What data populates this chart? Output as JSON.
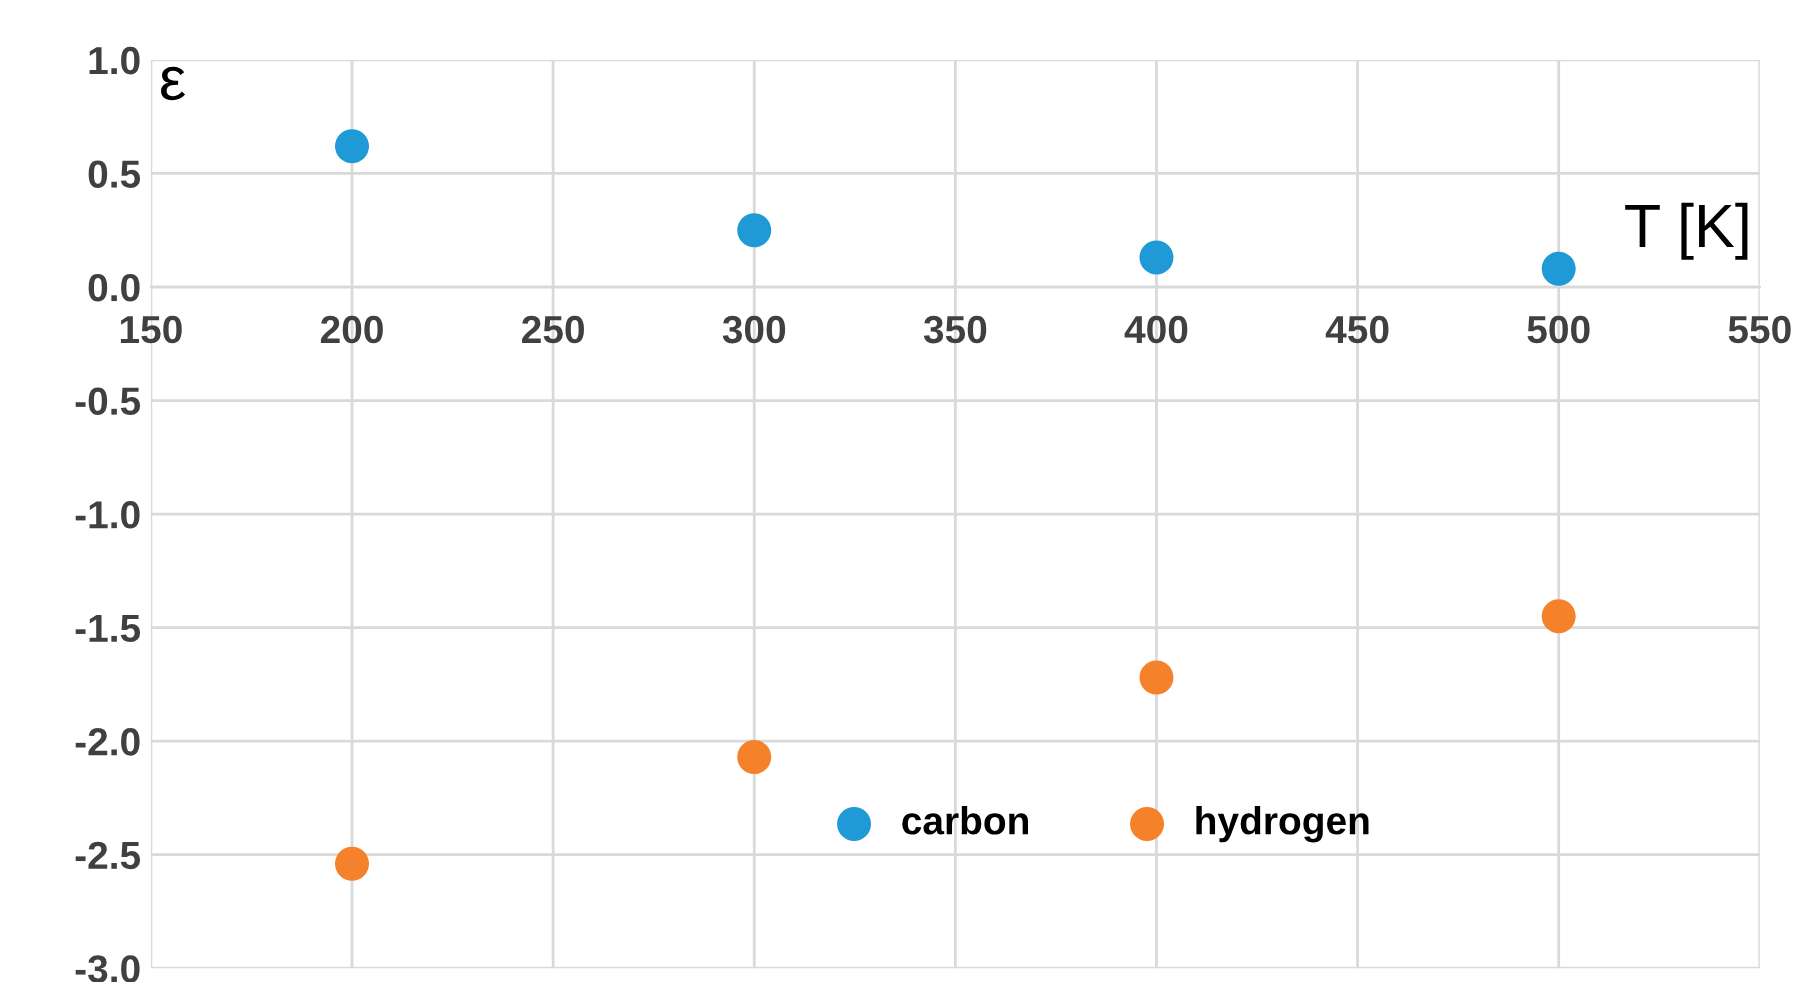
{
  "chart_data": {
    "type": "scatter",
    "xlabel": "T [K]",
    "ylabel": "ε",
    "series": [
      {
        "name": "carbon",
        "color": "#1f9ad6",
        "x": [
          200,
          300,
          400,
          500
        ],
        "values": [
          0.62,
          0.25,
          0.13,
          0.08
        ]
      },
      {
        "name": "hydrogen",
        "color": "#f5822a",
        "x": [
          200,
          300,
          400,
          500
        ],
        "values": [
          -2.54,
          -2.07,
          -1.72,
          -1.45
        ]
      }
    ],
    "xlim": [
      150,
      550
    ],
    "xticks": [
      150,
      200,
      250,
      300,
      350,
      400,
      450,
      500,
      550
    ],
    "ylim": [
      -3.0,
      1.0
    ],
    "yticks": [
      {
        "value": -3.0,
        "label": "-3.0"
      },
      {
        "value": -2.5,
        "label": "-2.5"
      },
      {
        "value": -2.0,
        "label": "-2.0"
      },
      {
        "value": -1.5,
        "label": "-1.5"
      },
      {
        "value": -1.0,
        "label": "-1.0"
      },
      {
        "value": -0.5,
        "label": "-0.5"
      },
      {
        "value": 0.0,
        "label": "0.0"
      },
      {
        "value": 0.5,
        "label": "0.5"
      },
      {
        "value": 1.0,
        "label": "1.0"
      }
    ],
    "grid": true,
    "legend": "bottom right",
    "marker": "circle"
  }
}
